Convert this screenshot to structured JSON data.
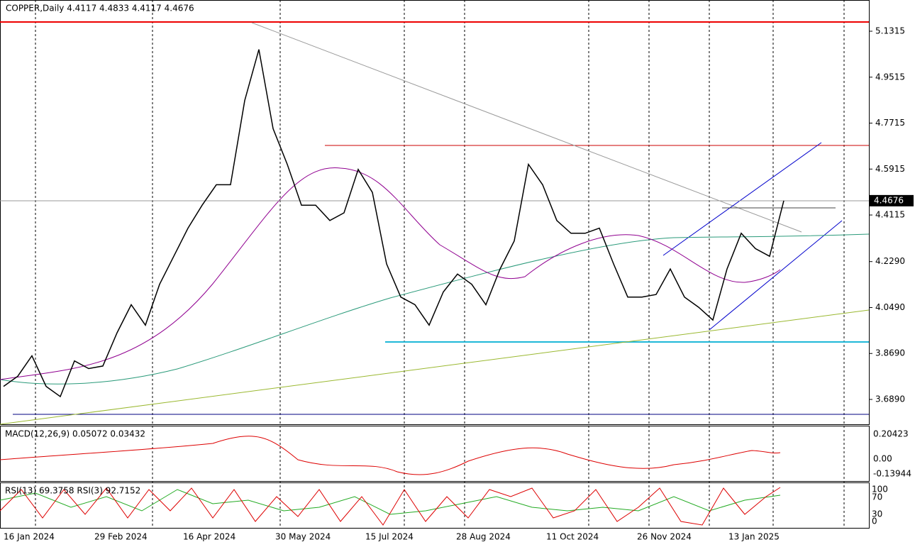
{
  "header": {
    "title": "COPPER,Daily  4.4117 4.4833 4.4117 4.4676"
  },
  "chart_data": {
    "type": "line",
    "color": "#000000",
    "values": [
      3.74,
      3.78,
      3.86,
      3.74,
      3.7,
      3.84,
      3.81,
      3.82,
      3.95,
      4.06,
      3.98,
      4.14,
      4.25,
      4.36,
      4.45,
      4.53,
      4.53,
      4.86,
      5.06,
      4.75,
      4.61,
      4.45,
      4.45,
      4.39,
      4.42,
      4.59,
      4.5,
      4.22,
      4.09,
      4.06,
      3.98,
      4.11,
      4.18,
      4.14,
      4.06,
      4.2,
      4.31,
      4.61,
      4.53,
      4.39,
      4.34,
      4.34,
      4.36,
      4.22,
      4.09,
      4.09,
      4.1,
      4.2,
      4.09,
      4.05,
      4.0,
      4.2,
      4.34,
      4.28,
      4.25,
      4.4676
    ],
    "ylim": [
      3.5917,
      5.2538
    ],
    "yticks": [
      5.1315,
      4.9515,
      4.7715,
      4.5915,
      4.4115,
      {
        "value": 4.229,
        "label": "4.2290"
      },
      {
        "value": 4.049,
        "label": "4.0490"
      },
      {
        "value": 3.869,
        "label": "3.8690"
      },
      {
        "value": 3.689,
        "label": "3.6890"
      }
    ],
    "current_price": 4.4676
  },
  "x_axis": {
    "labels": [
      "16 Jan 2024",
      "29 Feb 2024",
      "16 Apr 2024",
      "30 May 2024",
      "15 Jul 2024",
      "28 Aug 2024",
      "11 Oct 2024",
      "26 Nov 2024",
      "13 Jan 2025"
    ]
  },
  "macd": {
    "label": "MACD(12,26,9) 0.05072 0.03432",
    "ticks": [
      "0.20423",
      "0.00",
      "-0.13944"
    ]
  },
  "rsi": {
    "label": "RSI(13) 69.3758  RSI(3) 92.7152",
    "ticks": [
      "100",
      "70",
      "30",
      "0"
    ]
  }
}
